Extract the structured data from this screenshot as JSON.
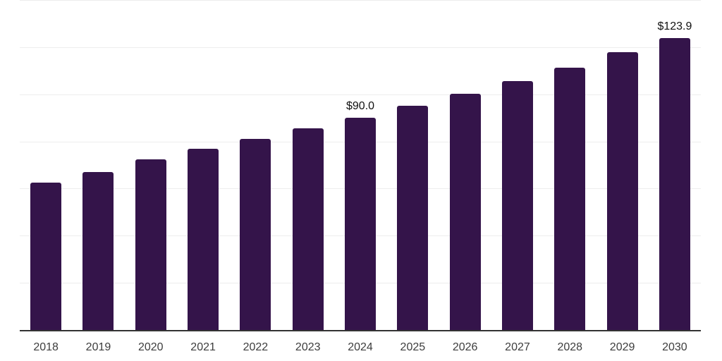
{
  "chart_data": {
    "type": "bar",
    "title": "",
    "xlabel": "",
    "ylabel": "",
    "categories": [
      "2018",
      "2019",
      "2020",
      "2021",
      "2022",
      "2023",
      "2024",
      "2025",
      "2026",
      "2027",
      "2028",
      "2029",
      "2030"
    ],
    "values": [
      62.4,
      66.9,
      72.5,
      76.8,
      81.2,
      85.6,
      90.0,
      95.0,
      100.3,
      105.7,
      111.4,
      117.8,
      123.9
    ],
    "data_labels": {
      "2024": "$90.0",
      "2030": "$123.9"
    },
    "ylim": [
      0,
      140
    ],
    "gridline_step": 20,
    "grid": "horizontal",
    "y_tick_labels_visible": false,
    "legend": "none",
    "currency_prefix": "$"
  },
  "style": {
    "bar_color": "#34144a",
    "gridline_color": "#ededed",
    "axis_line_color": "#333333",
    "value_label_color": "#111111",
    "tick_label_color": "#3d3d3d",
    "background_color": "#ffffff"
  }
}
